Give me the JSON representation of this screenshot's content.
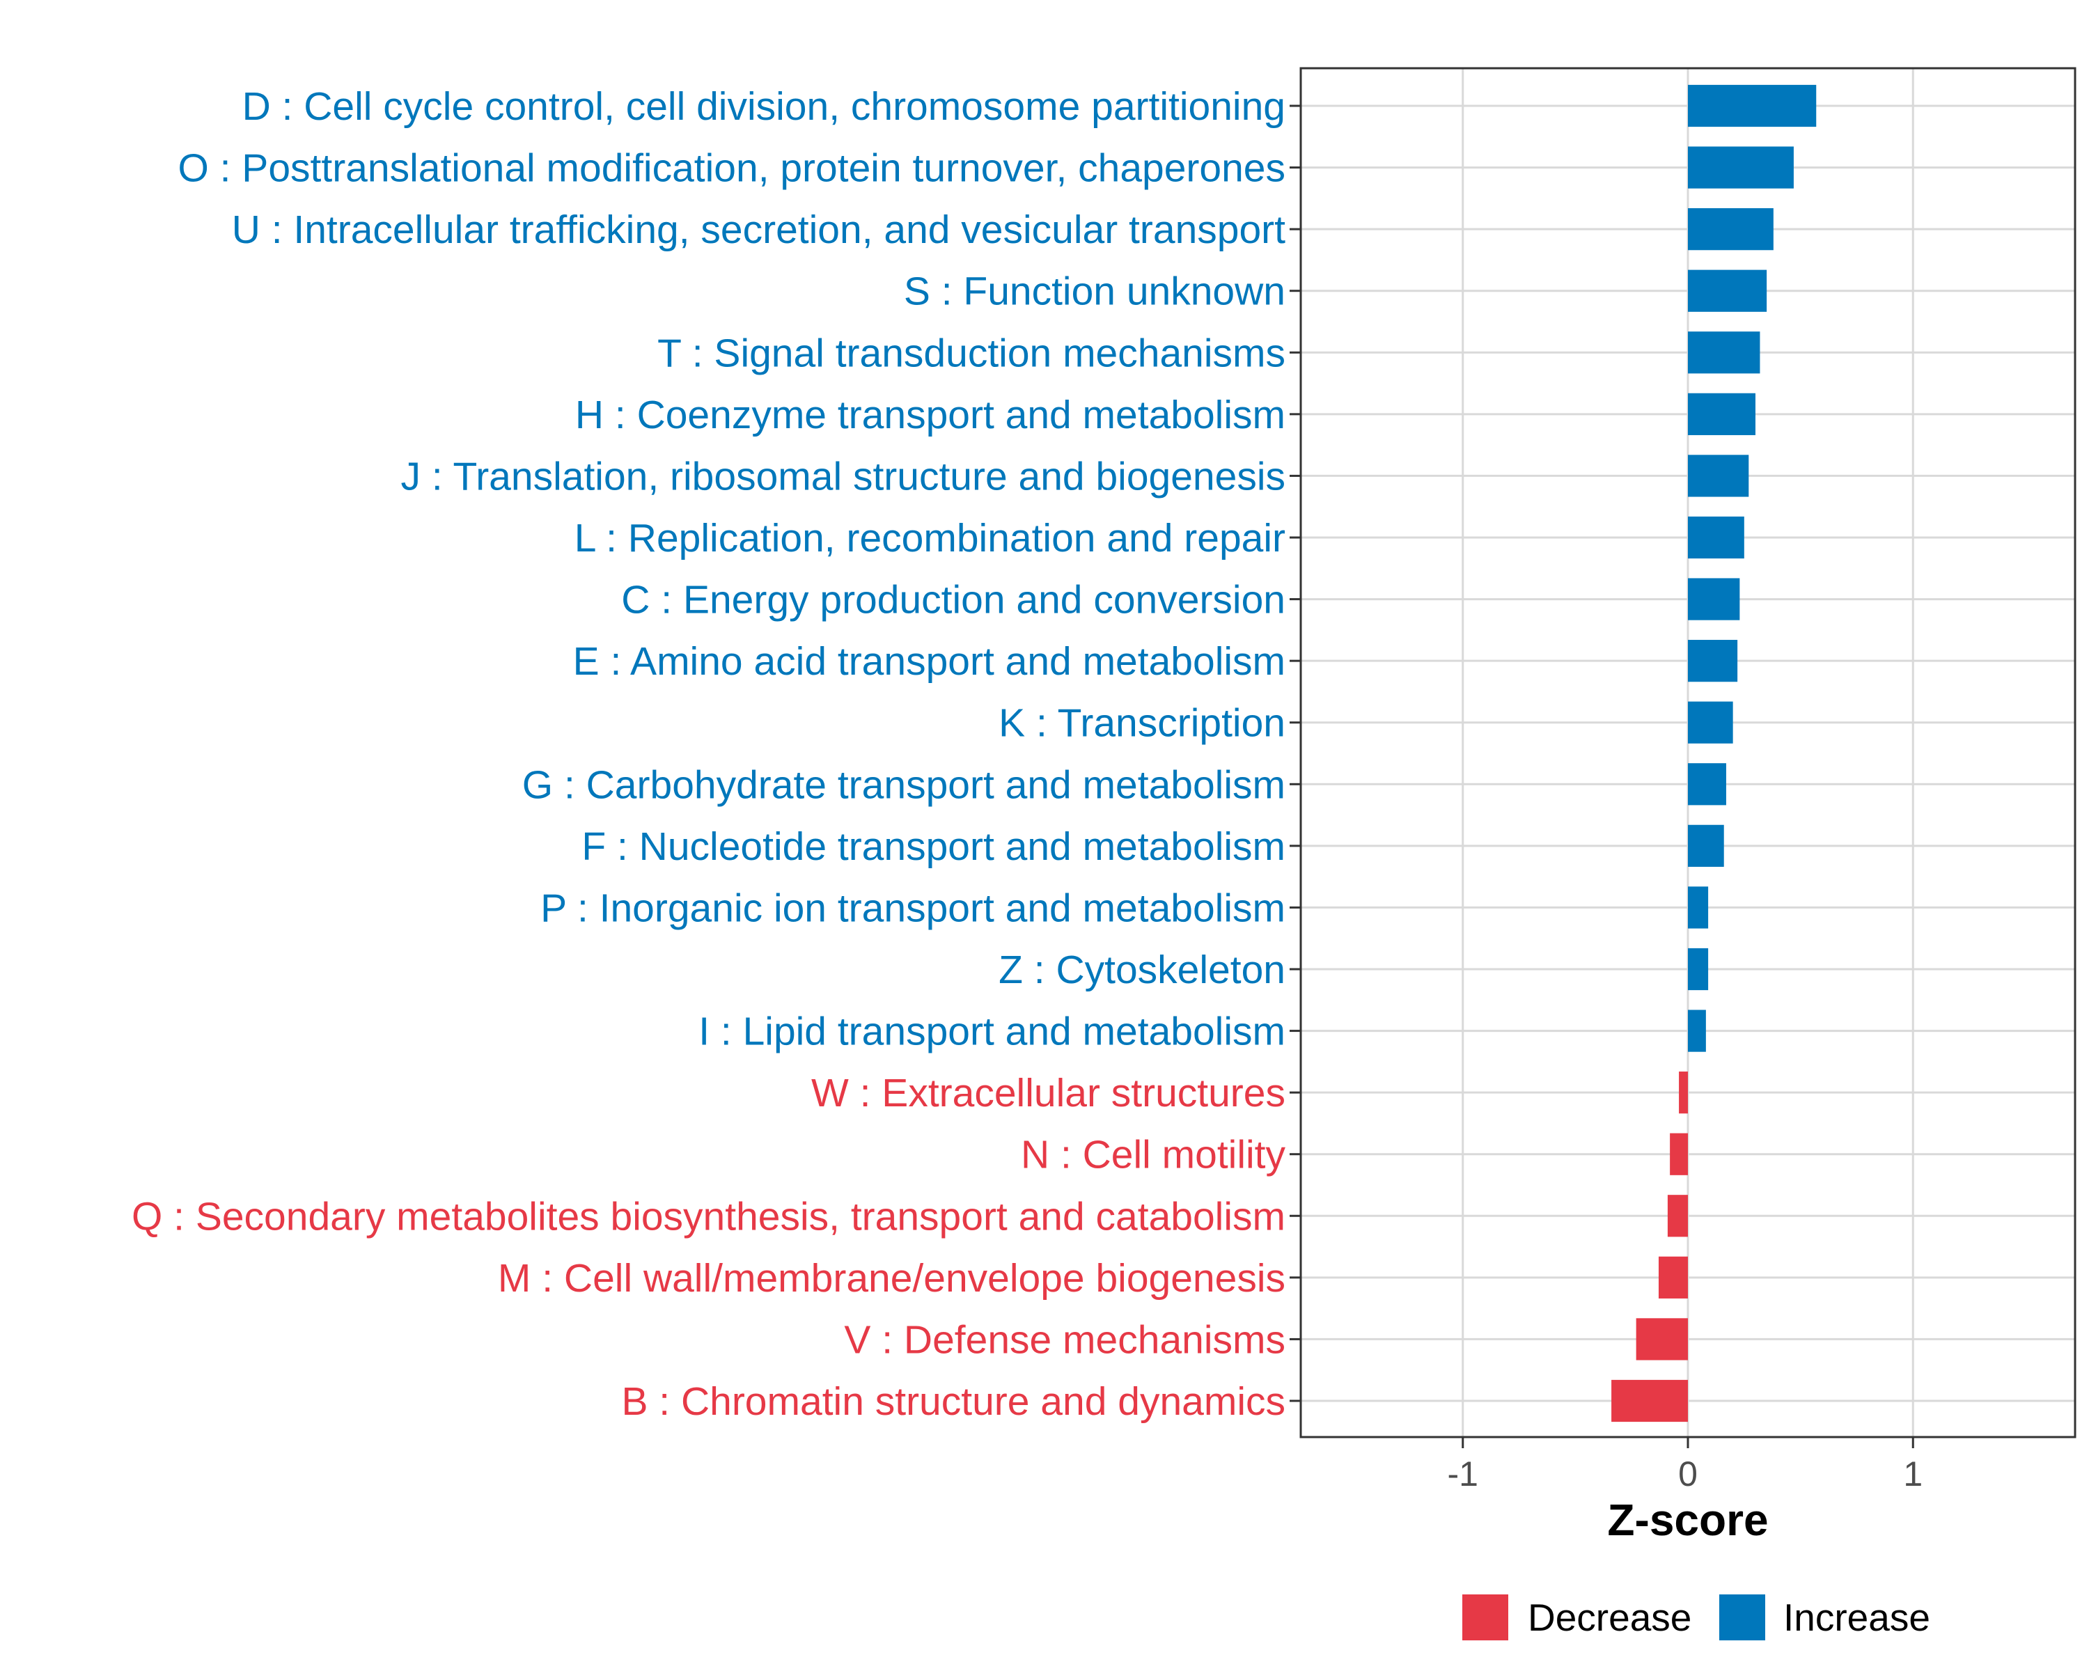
{
  "colors": {
    "increase": "#0077bb",
    "decrease": "#e63946",
    "grid": "#d9d9d9",
    "panel_border": "#333333"
  },
  "chart_data": {
    "type": "bar",
    "orientation": "horizontal",
    "title": "",
    "xlabel": "Z-score",
    "ylabel": "",
    "xlim": [
      -1.72,
      1.72
    ],
    "xticks": [
      -1,
      0,
      1
    ],
    "xtick_labels": [
      "-1",
      "0",
      "1"
    ],
    "grid": true,
    "legend_position": "bottom",
    "legend": [
      {
        "label": "Decrease",
        "color": "#e63946"
      },
      {
        "label": "Increase",
        "color": "#0077bb"
      }
    ],
    "categories": [
      {
        "label": "D : Cell cycle control, cell division, chromosome partitioning",
        "value": 0.57,
        "direction": "Increase"
      },
      {
        "label": "O : Posttranslational modification, protein turnover, chaperones",
        "value": 0.47,
        "direction": "Increase"
      },
      {
        "label": "U : Intracellular trafficking, secretion, and vesicular transport",
        "value": 0.38,
        "direction": "Increase"
      },
      {
        "label": "S : Function unknown",
        "value": 0.35,
        "direction": "Increase"
      },
      {
        "label": "T : Signal transduction mechanisms",
        "value": 0.32,
        "direction": "Increase"
      },
      {
        "label": "H : Coenzyme transport and metabolism",
        "value": 0.3,
        "direction": "Increase"
      },
      {
        "label": "J : Translation, ribosomal structure and biogenesis",
        "value": 0.27,
        "direction": "Increase"
      },
      {
        "label": "L : Replication, recombination and repair",
        "value": 0.25,
        "direction": "Increase"
      },
      {
        "label": "C : Energy production and conversion",
        "value": 0.23,
        "direction": "Increase"
      },
      {
        "label": "E : Amino acid transport and metabolism",
        "value": 0.22,
        "direction": "Increase"
      },
      {
        "label": "K : Transcription",
        "value": 0.2,
        "direction": "Increase"
      },
      {
        "label": "G : Carbohydrate transport and metabolism",
        "value": 0.17,
        "direction": "Increase"
      },
      {
        "label": "F : Nucleotide transport and metabolism",
        "value": 0.16,
        "direction": "Increase"
      },
      {
        "label": "P : Inorganic ion transport and metabolism",
        "value": 0.09,
        "direction": "Increase"
      },
      {
        "label": "Z : Cytoskeleton",
        "value": 0.09,
        "direction": "Increase"
      },
      {
        "label": "I : Lipid transport and metabolism",
        "value": 0.08,
        "direction": "Increase"
      },
      {
        "label": "W : Extracellular structures",
        "value": -0.04,
        "direction": "Decrease"
      },
      {
        "label": "N : Cell motility",
        "value": -0.08,
        "direction": "Decrease"
      },
      {
        "label": "Q : Secondary metabolites biosynthesis, transport and catabolism",
        "value": -0.09,
        "direction": "Decrease"
      },
      {
        "label": "M : Cell wall/membrane/envelope biogenesis",
        "value": -0.13,
        "direction": "Decrease"
      },
      {
        "label": "V : Defense mechanisms",
        "value": -0.23,
        "direction": "Decrease"
      },
      {
        "label": "B : Chromatin structure and dynamics",
        "value": -0.34,
        "direction": "Decrease"
      }
    ]
  }
}
